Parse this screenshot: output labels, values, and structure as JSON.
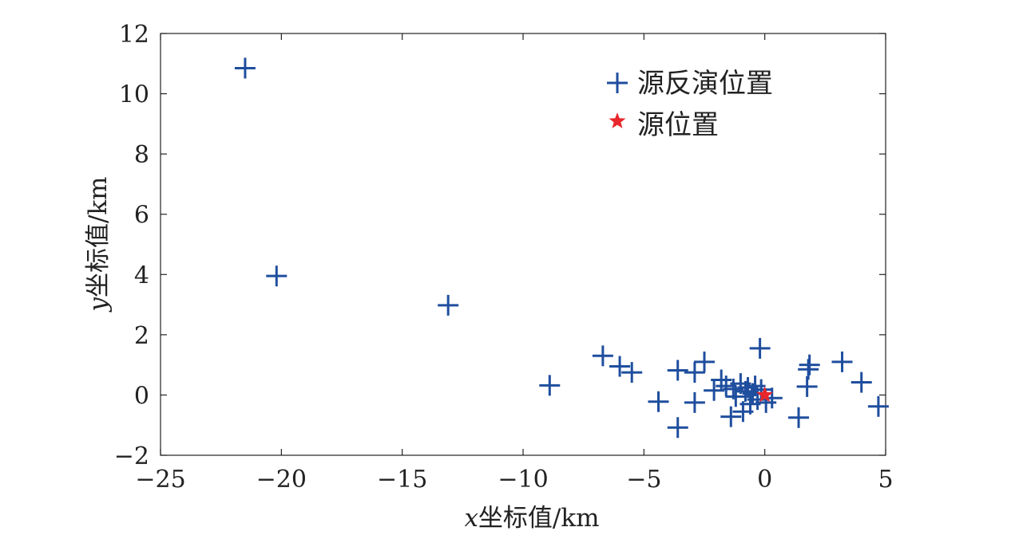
{
  "chart_data": {
    "type": "scatter",
    "title": "",
    "xlabel_var": "x",
    "xlabel_text": "坐标值/km",
    "ylabel_var": "y",
    "ylabel_text": "坐标值/km",
    "xlim": [
      -25,
      5
    ],
    "ylim": [
      -2,
      12
    ],
    "xticks": [
      -25,
      -20,
      -15,
      -10,
      -5,
      0,
      5
    ],
    "yticks": [
      -2,
      0,
      2,
      4,
      6,
      8,
      10,
      12
    ],
    "xtick_labels": [
      "−25",
      "−20",
      "−15",
      "−10",
      "−5",
      "0",
      "5"
    ],
    "ytick_labels": [
      "−2",
      "0",
      "2",
      "4",
      "6",
      "8",
      "10",
      "12"
    ],
    "grid": false,
    "legend_position": "top-right",
    "series": [
      {
        "name": "源反演位置",
        "marker": "plus",
        "color": "#1f4e9e",
        "points": [
          [
            -21.5,
            10.85
          ],
          [
            -20.2,
            3.95
          ],
          [
            -13.1,
            2.98
          ],
          [
            -8.9,
            0.32
          ],
          [
            -6.7,
            1.3
          ],
          [
            -6.0,
            0.95
          ],
          [
            -5.5,
            0.75
          ],
          [
            -4.4,
            -0.22
          ],
          [
            -3.6,
            0.82
          ],
          [
            -3.6,
            -1.08
          ],
          [
            -2.9,
            0.75
          ],
          [
            -2.9,
            -0.25
          ],
          [
            -2.5,
            1.1
          ],
          [
            -2.1,
            0.15
          ],
          [
            -1.8,
            0.5
          ],
          [
            -1.6,
            0.3
          ],
          [
            -1.4,
            -0.72
          ],
          [
            -1.3,
            0.2
          ],
          [
            -1.2,
            -0.05
          ],
          [
            -1.0,
            0.38
          ],
          [
            -0.9,
            -0.55
          ],
          [
            -0.8,
            0.12
          ],
          [
            -0.7,
            0.25
          ],
          [
            -0.6,
            -0.3
          ],
          [
            -0.5,
            0.05
          ],
          [
            -0.4,
            0.3
          ],
          [
            -0.3,
            -0.15
          ],
          [
            -0.2,
            1.55
          ],
          [
            -0.15,
            0.18
          ],
          [
            0.05,
            -0.25
          ],
          [
            0.3,
            -0.1
          ],
          [
            1.4,
            -0.75
          ],
          [
            1.75,
            0.28
          ],
          [
            1.8,
            0.85
          ],
          [
            1.85,
            1.0
          ],
          [
            3.2,
            1.1
          ],
          [
            4.0,
            0.42
          ],
          [
            4.7,
            -0.38
          ]
        ]
      },
      {
        "name": "源位置",
        "marker": "star",
        "color": "#e8262b",
        "points": [
          [
            0,
            0
          ]
        ]
      }
    ]
  }
}
